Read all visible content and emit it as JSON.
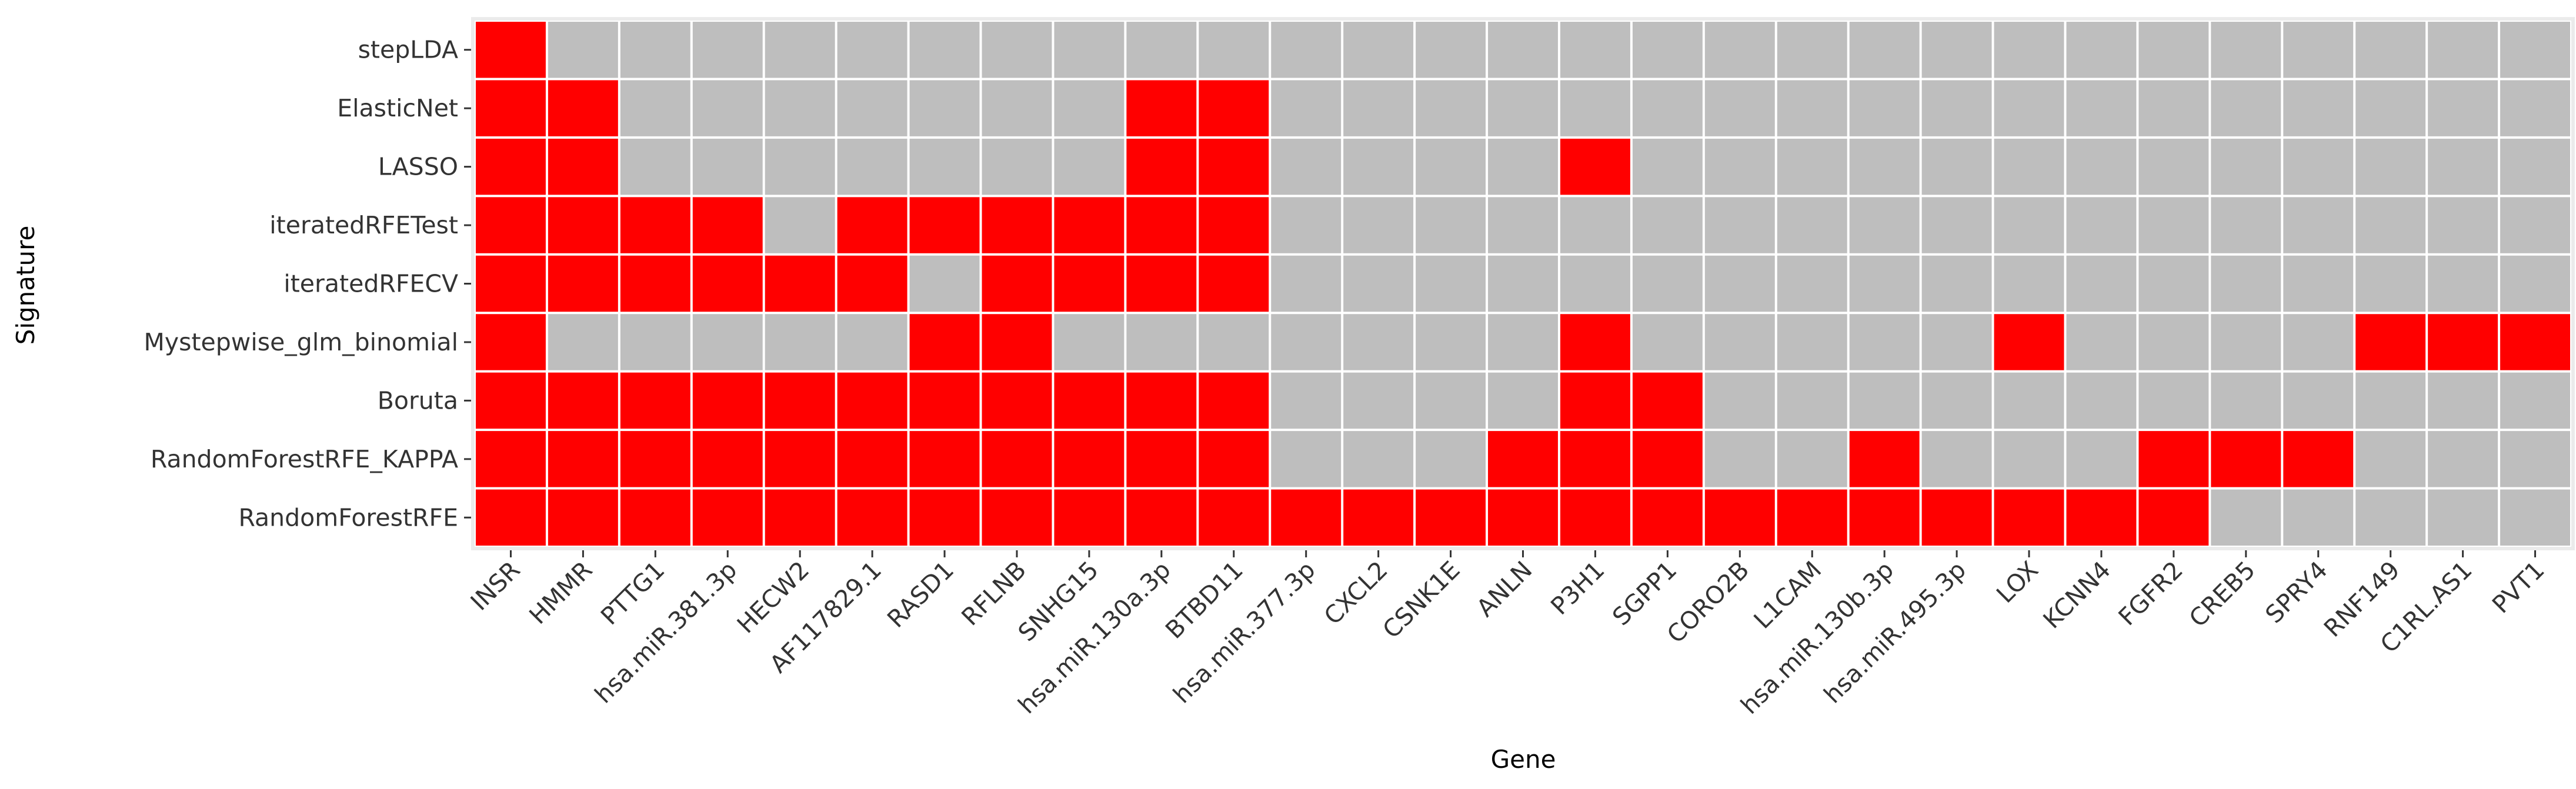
{
  "chart_data": {
    "type": "heatmap",
    "xlabel": "Gene",
    "ylabel": "Signature",
    "genes": [
      "INSR",
      "HMMR",
      "PTTG1",
      "hsa.miR.381.3p",
      "HECW2",
      "AF117829.1",
      "RASD1",
      "RFLNB",
      "SNHG15",
      "hsa.miR.130a.3p",
      "BTBD11",
      "hsa.miR.377.3p",
      "CXCL2",
      "CSNK1E",
      "ANLN",
      "P3H1",
      "SGPP1",
      "CORO2B",
      "L1CAM",
      "hsa.miR.130b.3p",
      "hsa.miR.495.3p",
      "LOX",
      "KCNN4",
      "FGFR2",
      "CREB5",
      "SPRY4",
      "RNF149",
      "C1RL.AS1",
      "PVT1"
    ],
    "signatures": [
      "stepLDA",
      "ElasticNet",
      "LASSO",
      "iteratedRFETest",
      "iteratedRFECV",
      "Mystepwise_glm_binomial",
      "Boruta",
      "RandomForestRFE_KAPPA",
      "RandomForestRFE"
    ],
    "selected": [
      [
        1,
        0,
        0,
        0,
        0,
        0,
        0,
        0,
        0,
        0,
        0,
        0,
        0,
        0,
        0,
        0,
        0,
        0,
        0,
        0,
        0,
        0,
        0,
        0,
        0,
        0,
        0,
        0,
        0
      ],
      [
        1,
        1,
        0,
        0,
        0,
        0,
        0,
        0,
        0,
        1,
        1,
        0,
        0,
        0,
        0,
        0,
        0,
        0,
        0,
        0,
        0,
        0,
        0,
        0,
        0,
        0,
        0,
        0,
        0
      ],
      [
        1,
        1,
        0,
        0,
        0,
        0,
        0,
        0,
        0,
        1,
        1,
        0,
        0,
        0,
        0,
        1,
        0,
        0,
        0,
        0,
        0,
        0,
        0,
        0,
        0,
        0,
        0,
        0,
        0
      ],
      [
        1,
        1,
        1,
        1,
        0,
        1,
        1,
        1,
        1,
        1,
        1,
        0,
        0,
        0,
        0,
        0,
        0,
        0,
        0,
        0,
        0,
        0,
        0,
        0,
        0,
        0,
        0,
        0,
        0
      ],
      [
        1,
        1,
        1,
        1,
        1,
        1,
        0,
        1,
        1,
        1,
        1,
        0,
        0,
        0,
        0,
        0,
        0,
        0,
        0,
        0,
        0,
        0,
        0,
        0,
        0,
        0,
        0,
        0,
        0
      ],
      [
        1,
        0,
        0,
        0,
        0,
        0,
        1,
        1,
        0,
        0,
        0,
        0,
        0,
        0,
        0,
        1,
        0,
        0,
        0,
        0,
        0,
        1,
        0,
        0,
        0,
        0,
        1,
        1,
        1
      ],
      [
        1,
        1,
        1,
        1,
        1,
        1,
        1,
        1,
        1,
        1,
        1,
        0,
        0,
        0,
        0,
        1,
        1,
        0,
        0,
        0,
        0,
        0,
        0,
        0,
        0,
        0,
        0,
        0,
        0
      ],
      [
        1,
        1,
        1,
        1,
        1,
        1,
        1,
        1,
        1,
        1,
        1,
        0,
        0,
        0,
        1,
        1,
        1,
        0,
        0,
        1,
        0,
        0,
        0,
        1,
        1,
        1,
        0,
        0,
        0
      ],
      [
        1,
        1,
        1,
        1,
        1,
        1,
        1,
        1,
        1,
        1,
        1,
        1,
        1,
        1,
        1,
        1,
        1,
        1,
        1,
        1,
        1,
        1,
        1,
        1,
        0,
        0,
        0,
        0,
        0
      ]
    ],
    "colors": {
      "selected": "#ff0000",
      "not_selected": "#bebebe",
      "grid": "#ffffff",
      "panel_background": "#ebebeb"
    },
    "legend": "none"
  }
}
